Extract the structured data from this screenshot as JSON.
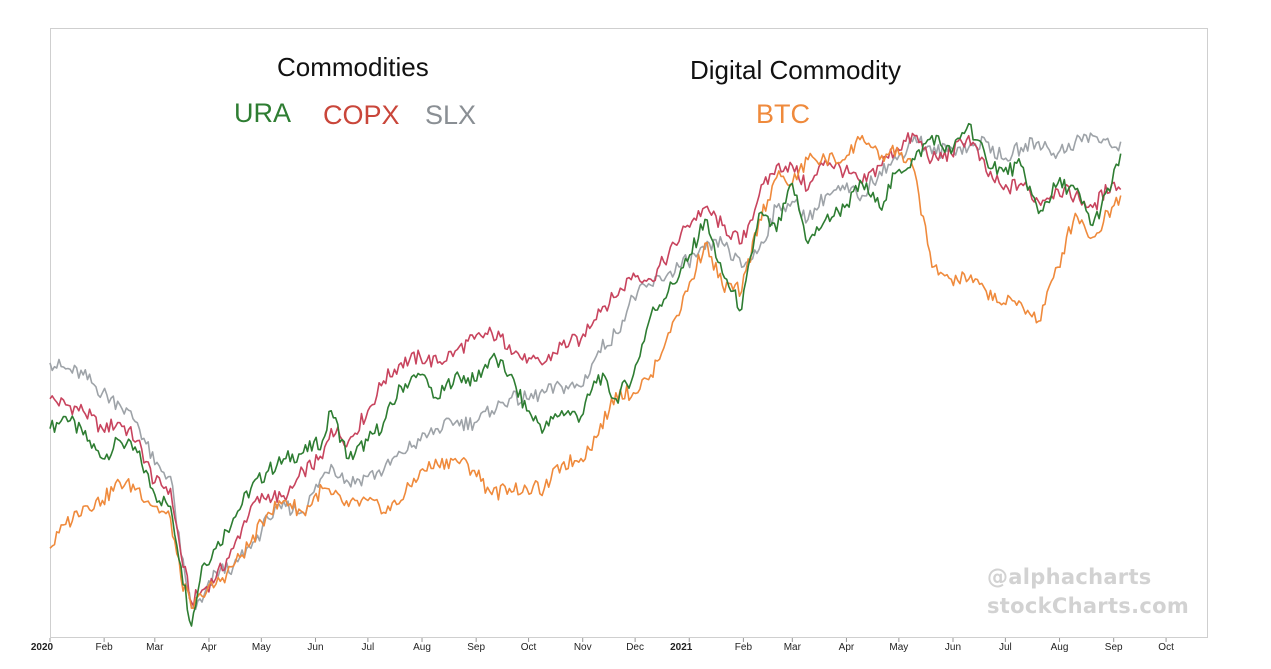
{
  "chart_data": {
    "type": "line",
    "title_left": "Commodities",
    "title_right": "Digital Commodity",
    "x_ticks": [
      {
        "label": "2020",
        "date": "2020-01-01",
        "year": true
      },
      {
        "label": "Feb",
        "date": "2020-02-01"
      },
      {
        "label": "Mar",
        "date": "2020-03-01"
      },
      {
        "label": "Apr",
        "date": "2020-04-01"
      },
      {
        "label": "May",
        "date": "2020-05-01"
      },
      {
        "label": "Jun",
        "date": "2020-06-01"
      },
      {
        "label": "Jul",
        "date": "2020-07-01"
      },
      {
        "label": "Aug",
        "date": "2020-08-01"
      },
      {
        "label": "Sep",
        "date": "2020-09-01"
      },
      {
        "label": "Oct",
        "date": "2020-10-01"
      },
      {
        "label": "Nov",
        "date": "2020-11-01"
      },
      {
        "label": "Dec",
        "date": "2020-12-01"
      },
      {
        "label": "2021",
        "date": "2021-01-01",
        "year": true
      },
      {
        "label": "Feb",
        "date": "2021-02-01"
      },
      {
        "label": "Mar",
        "date": "2021-03-01"
      },
      {
        "label": "Apr",
        "date": "2021-04-01"
      },
      {
        "label": "May",
        "date": "2021-05-01"
      },
      {
        "label": "Jun",
        "date": "2021-06-01"
      },
      {
        "label": "Jul",
        "date": "2021-07-01"
      },
      {
        "label": "Aug",
        "date": "2021-08-01"
      },
      {
        "label": "Sep",
        "date": "2021-09-01"
      },
      {
        "label": "Oct",
        "date": "2021-10-01"
      }
    ],
    "x_range": [
      "2020-01-01",
      "2021-10-25"
    ],
    "y_range": [
      0,
      100
    ],
    "y_axis_labels": "none",
    "grid": false,
    "series": [
      {
        "name": "URA",
        "color": "#2e7d32",
        "points": [
          [
            "2020-01-01",
            35
          ],
          [
            "2020-01-10",
            37
          ],
          [
            "2020-01-20",
            34
          ],
          [
            "2020-01-31",
            30
          ],
          [
            "2020-02-10",
            33
          ],
          [
            "2020-02-20",
            31
          ],
          [
            "2020-03-01",
            24
          ],
          [
            "2020-03-10",
            22
          ],
          [
            "2020-03-16",
            12
          ],
          [
            "2020-03-22",
            2
          ],
          [
            "2020-03-28",
            12
          ],
          [
            "2020-04-05",
            15
          ],
          [
            "2020-04-15",
            20
          ],
          [
            "2020-04-25",
            25
          ],
          [
            "2020-05-05",
            28
          ],
          [
            "2020-05-15",
            30
          ],
          [
            "2020-05-25",
            31
          ],
          [
            "2020-06-05",
            33
          ],
          [
            "2020-06-10",
            38
          ],
          [
            "2020-06-20",
            30
          ],
          [
            "2020-07-01",
            33
          ],
          [
            "2020-07-10",
            36
          ],
          [
            "2020-07-20",
            42
          ],
          [
            "2020-07-31",
            44
          ],
          [
            "2020-08-10",
            40
          ],
          [
            "2020-08-20",
            44
          ],
          [
            "2020-08-31",
            43
          ],
          [
            "2020-09-10",
            47
          ],
          [
            "2020-09-20",
            44
          ],
          [
            "2020-09-30",
            38
          ],
          [
            "2020-10-10",
            35
          ],
          [
            "2020-10-20",
            38
          ],
          [
            "2020-10-31",
            37
          ],
          [
            "2020-11-10",
            44
          ],
          [
            "2020-11-20",
            40
          ],
          [
            "2020-11-30",
            44
          ],
          [
            "2020-12-10",
            54
          ],
          [
            "2020-12-20",
            58
          ],
          [
            "2020-12-31",
            63
          ],
          [
            "2021-01-10",
            70
          ],
          [
            "2021-01-20",
            61
          ],
          [
            "2021-01-31",
            55
          ],
          [
            "2021-02-10",
            71
          ],
          [
            "2021-02-20",
            68
          ],
          [
            "2021-03-01",
            76
          ],
          [
            "2021-03-10",
            66
          ],
          [
            "2021-03-20",
            70
          ],
          [
            "2021-03-31",
            72
          ],
          [
            "2021-04-10",
            76
          ],
          [
            "2021-04-20",
            72
          ],
          [
            "2021-04-30",
            78
          ],
          [
            "2021-05-10",
            80
          ],
          [
            "2021-05-20",
            84
          ],
          [
            "2021-05-31",
            81
          ],
          [
            "2021-06-10",
            86
          ],
          [
            "2021-06-20",
            80
          ],
          [
            "2021-06-30",
            78
          ],
          [
            "2021-07-10",
            79
          ],
          [
            "2021-07-20",
            71
          ],
          [
            "2021-07-31",
            76
          ],
          [
            "2021-08-10",
            75
          ],
          [
            "2021-08-20",
            69
          ],
          [
            "2021-08-31",
            76
          ],
          [
            "2021-09-05",
            81
          ]
        ]
      },
      {
        "name": "COPX",
        "color": "#c8445e",
        "points": [
          [
            "2020-01-01",
            40
          ],
          [
            "2020-01-10",
            39
          ],
          [
            "2020-01-20",
            38
          ],
          [
            "2020-01-31",
            35
          ],
          [
            "2020-02-10",
            36
          ],
          [
            "2020-02-20",
            33
          ],
          [
            "2020-03-01",
            26
          ],
          [
            "2020-03-10",
            25
          ],
          [
            "2020-03-16",
            14
          ],
          [
            "2020-03-22",
            6
          ],
          [
            "2020-03-28",
            8
          ],
          [
            "2020-04-05",
            10
          ],
          [
            "2020-04-15",
            15
          ],
          [
            "2020-04-25",
            22
          ],
          [
            "2020-05-05",
            24
          ],
          [
            "2020-05-15",
            23
          ],
          [
            "2020-05-25",
            28
          ],
          [
            "2020-06-05",
            30
          ],
          [
            "2020-06-10",
            35
          ],
          [
            "2020-06-20",
            33
          ],
          [
            "2020-07-01",
            38
          ],
          [
            "2020-07-10",
            43
          ],
          [
            "2020-07-20",
            46
          ],
          [
            "2020-07-31",
            47
          ],
          [
            "2020-08-10",
            46
          ],
          [
            "2020-08-20",
            48
          ],
          [
            "2020-08-31",
            50
          ],
          [
            "2020-09-10",
            51
          ],
          [
            "2020-09-20",
            49
          ],
          [
            "2020-09-30",
            46
          ],
          [
            "2020-10-10",
            46
          ],
          [
            "2020-10-20",
            49
          ],
          [
            "2020-10-31",
            50
          ],
          [
            "2020-11-10",
            55
          ],
          [
            "2020-11-20",
            57
          ],
          [
            "2020-11-30",
            61
          ],
          [
            "2020-12-10",
            60
          ],
          [
            "2020-12-20",
            64
          ],
          [
            "2020-12-31",
            69
          ],
          [
            "2021-01-10",
            72
          ],
          [
            "2021-01-20",
            69
          ],
          [
            "2021-01-31",
            66
          ],
          [
            "2021-02-10",
            74
          ],
          [
            "2021-02-20",
            79
          ],
          [
            "2021-03-01",
            79
          ],
          [
            "2021-03-10",
            75
          ],
          [
            "2021-03-20",
            80
          ],
          [
            "2021-03-31",
            78
          ],
          [
            "2021-04-10",
            76
          ],
          [
            "2021-04-20",
            79
          ],
          [
            "2021-04-30",
            82
          ],
          [
            "2021-05-10",
            84
          ],
          [
            "2021-05-20",
            80
          ],
          [
            "2021-05-31",
            81
          ],
          [
            "2021-06-10",
            84
          ],
          [
            "2021-06-20",
            78
          ],
          [
            "2021-06-30",
            75
          ],
          [
            "2021-07-10",
            76
          ],
          [
            "2021-07-20",
            73
          ],
          [
            "2021-07-31",
            75
          ],
          [
            "2021-08-10",
            74
          ],
          [
            "2021-08-20",
            72
          ],
          [
            "2021-08-31",
            76
          ],
          [
            "2021-09-05",
            75
          ]
        ]
      },
      {
        "name": "SLX",
        "color": "#9ea3a8",
        "points": [
          [
            "2020-01-01",
            46
          ],
          [
            "2020-01-10",
            45
          ],
          [
            "2020-01-20",
            44
          ],
          [
            "2020-01-31",
            41
          ],
          [
            "2020-02-10",
            39
          ],
          [
            "2020-02-20",
            36
          ],
          [
            "2020-03-01",
            29
          ],
          [
            "2020-03-10",
            27
          ],
          [
            "2020-03-16",
            14
          ],
          [
            "2020-03-22",
            5
          ],
          [
            "2020-03-28",
            6
          ],
          [
            "2020-04-05",
            11
          ],
          [
            "2020-04-15",
            12
          ],
          [
            "2020-04-25",
            15
          ],
          [
            "2020-05-05",
            20
          ],
          [
            "2020-05-15",
            22
          ],
          [
            "2020-05-25",
            21
          ],
          [
            "2020-06-05",
            27
          ],
          [
            "2020-06-10",
            29
          ],
          [
            "2020-06-20",
            26
          ],
          [
            "2020-07-01",
            27
          ],
          [
            "2020-07-10",
            28
          ],
          [
            "2020-07-20",
            31
          ],
          [
            "2020-07-31",
            33
          ],
          [
            "2020-08-10",
            35
          ],
          [
            "2020-08-20",
            36
          ],
          [
            "2020-08-31",
            36
          ],
          [
            "2020-09-10",
            38
          ],
          [
            "2020-09-20",
            40
          ],
          [
            "2020-09-30",
            40
          ],
          [
            "2020-10-10",
            41
          ],
          [
            "2020-10-20",
            42
          ],
          [
            "2020-10-31",
            42
          ],
          [
            "2020-11-10",
            48
          ],
          [
            "2020-11-20",
            51
          ],
          [
            "2020-11-30",
            57
          ],
          [
            "2020-12-10",
            59
          ],
          [
            "2020-12-20",
            61
          ],
          [
            "2020-12-31",
            63
          ],
          [
            "2021-01-10",
            65
          ],
          [
            "2021-01-20",
            66
          ],
          [
            "2021-01-31",
            62
          ],
          [
            "2021-02-10",
            65
          ],
          [
            "2021-02-20",
            72
          ],
          [
            "2021-03-01",
            73
          ],
          [
            "2021-03-10",
            70
          ],
          [
            "2021-03-20",
            74
          ],
          [
            "2021-03-31",
            75
          ],
          [
            "2021-04-10",
            74
          ],
          [
            "2021-04-20",
            78
          ],
          [
            "2021-04-30",
            80
          ],
          [
            "2021-05-10",
            84
          ],
          [
            "2021-05-20",
            81
          ],
          [
            "2021-05-31",
            82
          ],
          [
            "2021-06-10",
            82
          ],
          [
            "2021-06-20",
            83
          ],
          [
            "2021-06-30",
            80
          ],
          [
            "2021-07-10",
            82
          ],
          [
            "2021-07-20",
            83
          ],
          [
            "2021-07-31",
            81
          ],
          [
            "2021-08-10",
            83
          ],
          [
            "2021-08-20",
            84
          ],
          [
            "2021-08-31",
            82
          ],
          [
            "2021-09-05",
            83
          ]
        ]
      },
      {
        "name": "BTC",
        "color": "#ef8a3c",
        "points": [
          [
            "2020-01-01",
            15
          ],
          [
            "2020-01-10",
            19
          ],
          [
            "2020-01-20",
            22
          ],
          [
            "2020-01-31",
            23
          ],
          [
            "2020-02-10",
            26
          ],
          [
            "2020-02-20",
            25
          ],
          [
            "2020-03-01",
            22
          ],
          [
            "2020-03-10",
            20
          ],
          [
            "2020-03-16",
            10
          ],
          [
            "2020-03-22",
            5
          ],
          [
            "2020-03-28",
            7
          ],
          [
            "2020-04-05",
            9
          ],
          [
            "2020-04-15",
            12
          ],
          [
            "2020-04-25",
            16
          ],
          [
            "2020-05-05",
            21
          ],
          [
            "2020-05-15",
            23
          ],
          [
            "2020-05-25",
            21
          ],
          [
            "2020-06-05",
            25
          ],
          [
            "2020-06-10",
            24
          ],
          [
            "2020-06-20",
            22
          ],
          [
            "2020-07-01",
            23
          ],
          [
            "2020-07-10",
            21
          ],
          [
            "2020-07-20",
            23
          ],
          [
            "2020-07-31",
            28
          ],
          [
            "2020-08-10",
            29
          ],
          [
            "2020-08-20",
            30
          ],
          [
            "2020-08-31",
            28
          ],
          [
            "2020-09-10",
            24
          ],
          [
            "2020-09-20",
            25
          ],
          [
            "2020-09-30",
            25
          ],
          [
            "2020-10-10",
            25
          ],
          [
            "2020-10-20",
            29
          ],
          [
            "2020-10-31",
            30
          ],
          [
            "2020-11-10",
            34
          ],
          [
            "2020-11-20",
            41
          ],
          [
            "2020-11-30",
            41
          ],
          [
            "2020-12-10",
            44
          ],
          [
            "2020-12-20",
            51
          ],
          [
            "2020-12-31",
            58
          ],
          [
            "2021-01-10",
            66
          ],
          [
            "2021-01-20",
            59
          ],
          [
            "2021-01-31",
            58
          ],
          [
            "2021-02-10",
            70
          ],
          [
            "2021-02-20",
            77
          ],
          [
            "2021-03-01",
            76
          ],
          [
            "2021-03-10",
            80
          ],
          [
            "2021-03-20",
            80
          ],
          [
            "2021-03-31",
            80
          ],
          [
            "2021-04-10",
            84
          ],
          [
            "2021-04-20",
            80
          ],
          [
            "2021-04-30",
            82
          ],
          [
            "2021-05-10",
            78
          ],
          [
            "2021-05-20",
            62
          ],
          [
            "2021-05-31",
            60
          ],
          [
            "2021-06-10",
            60
          ],
          [
            "2021-06-20",
            58
          ],
          [
            "2021-06-30",
            56
          ],
          [
            "2021-07-10",
            56
          ],
          [
            "2021-07-20",
            53
          ],
          [
            "2021-07-31",
            62
          ],
          [
            "2021-08-10",
            71
          ],
          [
            "2021-08-20",
            67
          ],
          [
            "2021-08-31",
            72
          ],
          [
            "2021-09-05",
            74
          ]
        ]
      }
    ]
  },
  "titles": {
    "left": "Commodities",
    "right": "Digital Commodity"
  },
  "legend": {
    "ura": {
      "label": "URA",
      "color": "#2e7d32"
    },
    "copx": {
      "label": "COPX",
      "color": "#c8445e"
    },
    "slx": {
      "label": "SLX",
      "color": "#9ea3a8"
    },
    "btc": {
      "label": "BTC",
      "color": "#ef8a3c"
    }
  },
  "watermark": {
    "line1": "@alphacharts",
    "line2": "stockCharts.com"
  }
}
